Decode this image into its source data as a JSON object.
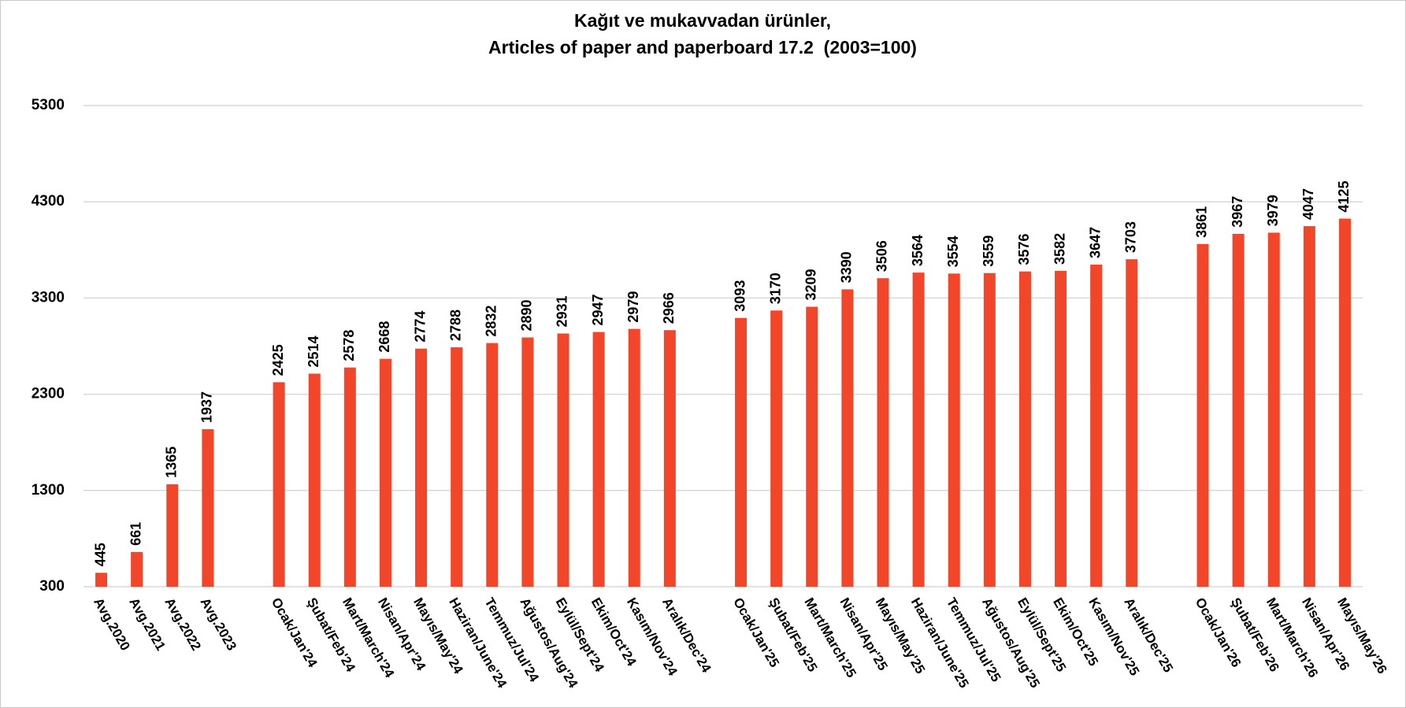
{
  "chart_data": {
    "type": "bar",
    "title": [
      "Kağıt ve mukavvadan ürünler,",
      "Articles of paper and paperboard 17.2  (2003=100)"
    ],
    "categories": [
      "Avg.2020",
      "Avg.2021",
      "Avg.2022",
      "Avg.2023",
      null,
      "Ocak/Jan'24",
      "Şubat/Feb'24",
      "Mart/March'24",
      "Nisan/Apr'24",
      "Mayıs/May'24",
      "Haziran/June'24",
      "Temmuz/Jul'24",
      "Ağustos/Aug'24",
      "Eylül/Sept'24",
      "Ekim/Oct'24",
      "Kasım/Nov'24",
      "Aralık/Dec'24",
      null,
      "Ocak/Jan'25",
      "Şubat/Feb'25",
      "Mart/March'25",
      "Nisan/Apr'25",
      "Mayıs/May'25",
      "Haziran/June'25",
      "Temmuz/Jul'25",
      "Ağustos/Aug'25",
      "Eylül/Sept'25",
      "Ekim/Oct'25",
      "Kasım/Nov'25",
      "Aralık/Dec'25",
      null,
      "Ocak/Jan'26",
      "Şubat/Feb'26",
      "Mart/March'26",
      "Nisan/Apr'26",
      "Mayıs/May'26"
    ],
    "values": [
      445,
      661,
      1365,
      1937,
      null,
      2425,
      2514,
      2578,
      2668,
      2774,
      2788,
      2832,
      2890,
      2931,
      2947,
      2979,
      2966,
      null,
      3093,
      3170,
      3209,
      3390,
      3506,
      3564,
      3554,
      3559,
      3576,
      3582,
      3647,
      3703,
      null,
      3861,
      3967,
      3979,
      4047,
      4125
    ],
    "color": "#f2462a",
    "ylim": [
      300,
      5300
    ],
    "yticks": [
      300,
      1300,
      2300,
      3300,
      4300,
      5300
    ],
    "grid": true
  }
}
